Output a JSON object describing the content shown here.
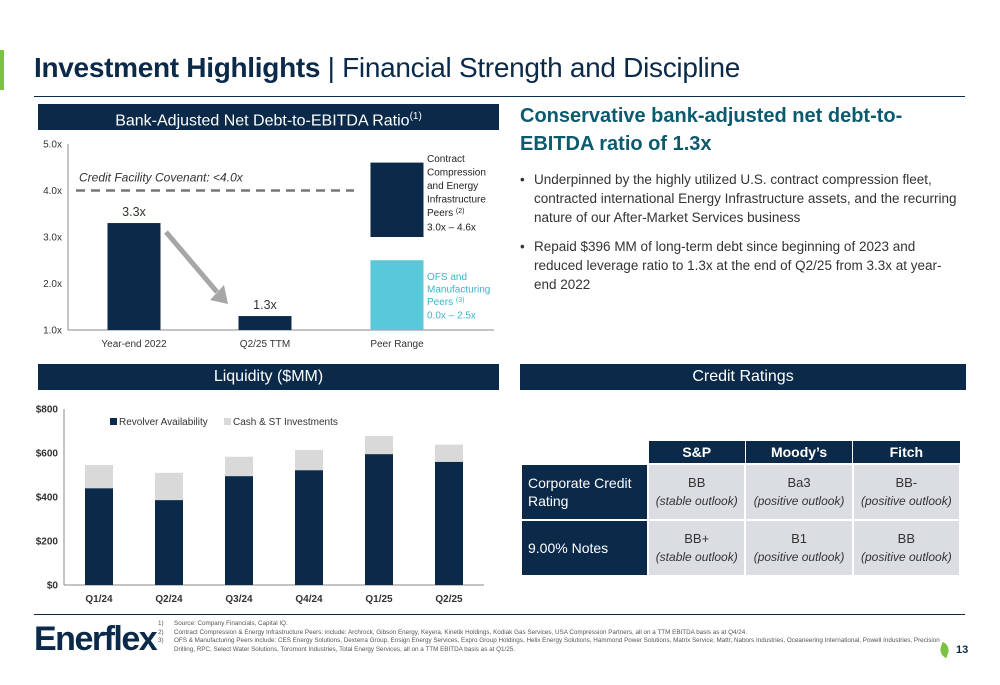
{
  "header": {
    "title_bold": "Investment Highlights",
    "title_sep": " | ",
    "title_light": "Financial Strength and Discipline"
  },
  "leverage_panel": {
    "title": "Bank-Adjusted Net Debt-to-EBITDA Ratio",
    "title_sup": "(1)"
  },
  "liquidity_panel": {
    "title": "Liquidity ($MM)"
  },
  "credit_panel": {
    "title": "Credit Ratings"
  },
  "right": {
    "headline": "Conservative bank-adjusted net debt-to-EBITDA ratio of 1.3x",
    "bullets": [
      "Underpinned by the highly utilized U.S. contract compression fleet, contracted international Energy Infrastructure assets, and the recurring nature of our After-Market Services business",
      "Repaid $396 MM of long-term debt since beginning of 2023 and reduced leverage ratio to 1.3x at the end of Q2/25 from 3.3x at year-end 2022"
    ]
  },
  "ratings": {
    "columns": [
      "",
      "S&P",
      "Moody’s",
      "Fitch"
    ],
    "rows": [
      {
        "label": "Corporate Credit Rating",
        "cells": [
          {
            "rating": "BB",
            "outlook": "(stable outlook)"
          },
          {
            "rating": "Ba3",
            "outlook": "(positive outlook)"
          },
          {
            "rating": "BB-",
            "outlook": "(positive outlook)"
          }
        ]
      },
      {
        "label": "9.00% Notes",
        "cells": [
          {
            "rating": "BB+",
            "outlook": "(stable outlook)"
          },
          {
            "rating": "B1",
            "outlook": "(positive outlook)"
          },
          {
            "rating": "BB",
            "outlook": "(positive outlook)"
          }
        ]
      }
    ]
  },
  "footer": {
    "logo": "Enerflex",
    "page": "13",
    "notes": [
      {
        "n": "1)",
        "text": "Source: Company Financials, Capital IQ."
      },
      {
        "n": "2)",
        "text": "Contract Compression & Energy Infrastructure Peers: include: Archrock, Gibson Energy, Keyera, Kinetik Holdings, Kodiak Gas Services, USA Compression Partners, all on a TTM EBITDA basis as at Q4/24."
      },
      {
        "n": "3)",
        "text": "OFS & Manufacturing Peers include: CES Energy Solutions, Dexterra Group, Ensign Energy Services, Expro Group Holdings, Helix Energy Solutions, Hammond Power Solutions, Matrix Service, Mattr, Nabors Industries, Oceaneering International, Powell Industries, Precision Drilling, RPC, Select Water Solutions, Toromont Industries, Total Energy Services, all on a TTM EBITDA basis as at Q1/25."
      }
    ]
  },
  "colors": {
    "navy": "#0b2a4a",
    "teal": "#59c8d8",
    "light_gray": "#d9d9d9",
    "green": "#7cc242",
    "headline": "#0b5a6e"
  },
  "chart_data": [
    {
      "type": "bar",
      "title": "Bank-Adjusted Net Debt-to-EBITDA Ratio(1)",
      "categories": [
        "Year-end 2022",
        "Q2/25 TTM"
      ],
      "values": [
        3.3,
        1.3
      ],
      "value_labels": [
        "3.3x",
        "1.3x"
      ],
      "yticks": [
        "1.0x",
        "2.0x",
        "3.0x",
        "4.0x",
        "5.0x"
      ],
      "ylim": [
        1.0,
        5.0
      ],
      "covenant": {
        "value": 4.0,
        "label": "Credit Facility Covenant: <4.0x"
      },
      "peer_range": {
        "category": "Peer Range",
        "ranges": [
          {
            "name": "Contract Compression and Energy Infrastructure Peers",
            "note": "(2)",
            "range_label": "3.0x – 4.6x",
            "low": 3.0,
            "high": 4.6
          },
          {
            "name": "OFS and Manufacturing Peers",
            "note": "(3)",
            "range_label": "0.0x – 2.5x",
            "low": 0.0,
            "high": 2.5
          }
        ]
      }
    },
    {
      "type": "bar",
      "stacked": true,
      "title": "Liquidity ($MM)",
      "categories": [
        "Q1/24",
        "Q2/24",
        "Q3/24",
        "Q4/24",
        "Q1/25",
        "Q2/25"
      ],
      "series": [
        {
          "name": "Revolver Availability",
          "values": [
            440,
            386,
            495,
            522,
            595,
            560
          ]
        },
        {
          "name": "Cash & ST Investments",
          "values": [
            105,
            124,
            88,
            92,
            82,
            78
          ]
        }
      ],
      "yticks": [
        "$0",
        "$200",
        "$400",
        "$600",
        "$800"
      ],
      "ylim": [
        0,
        800
      ]
    }
  ]
}
